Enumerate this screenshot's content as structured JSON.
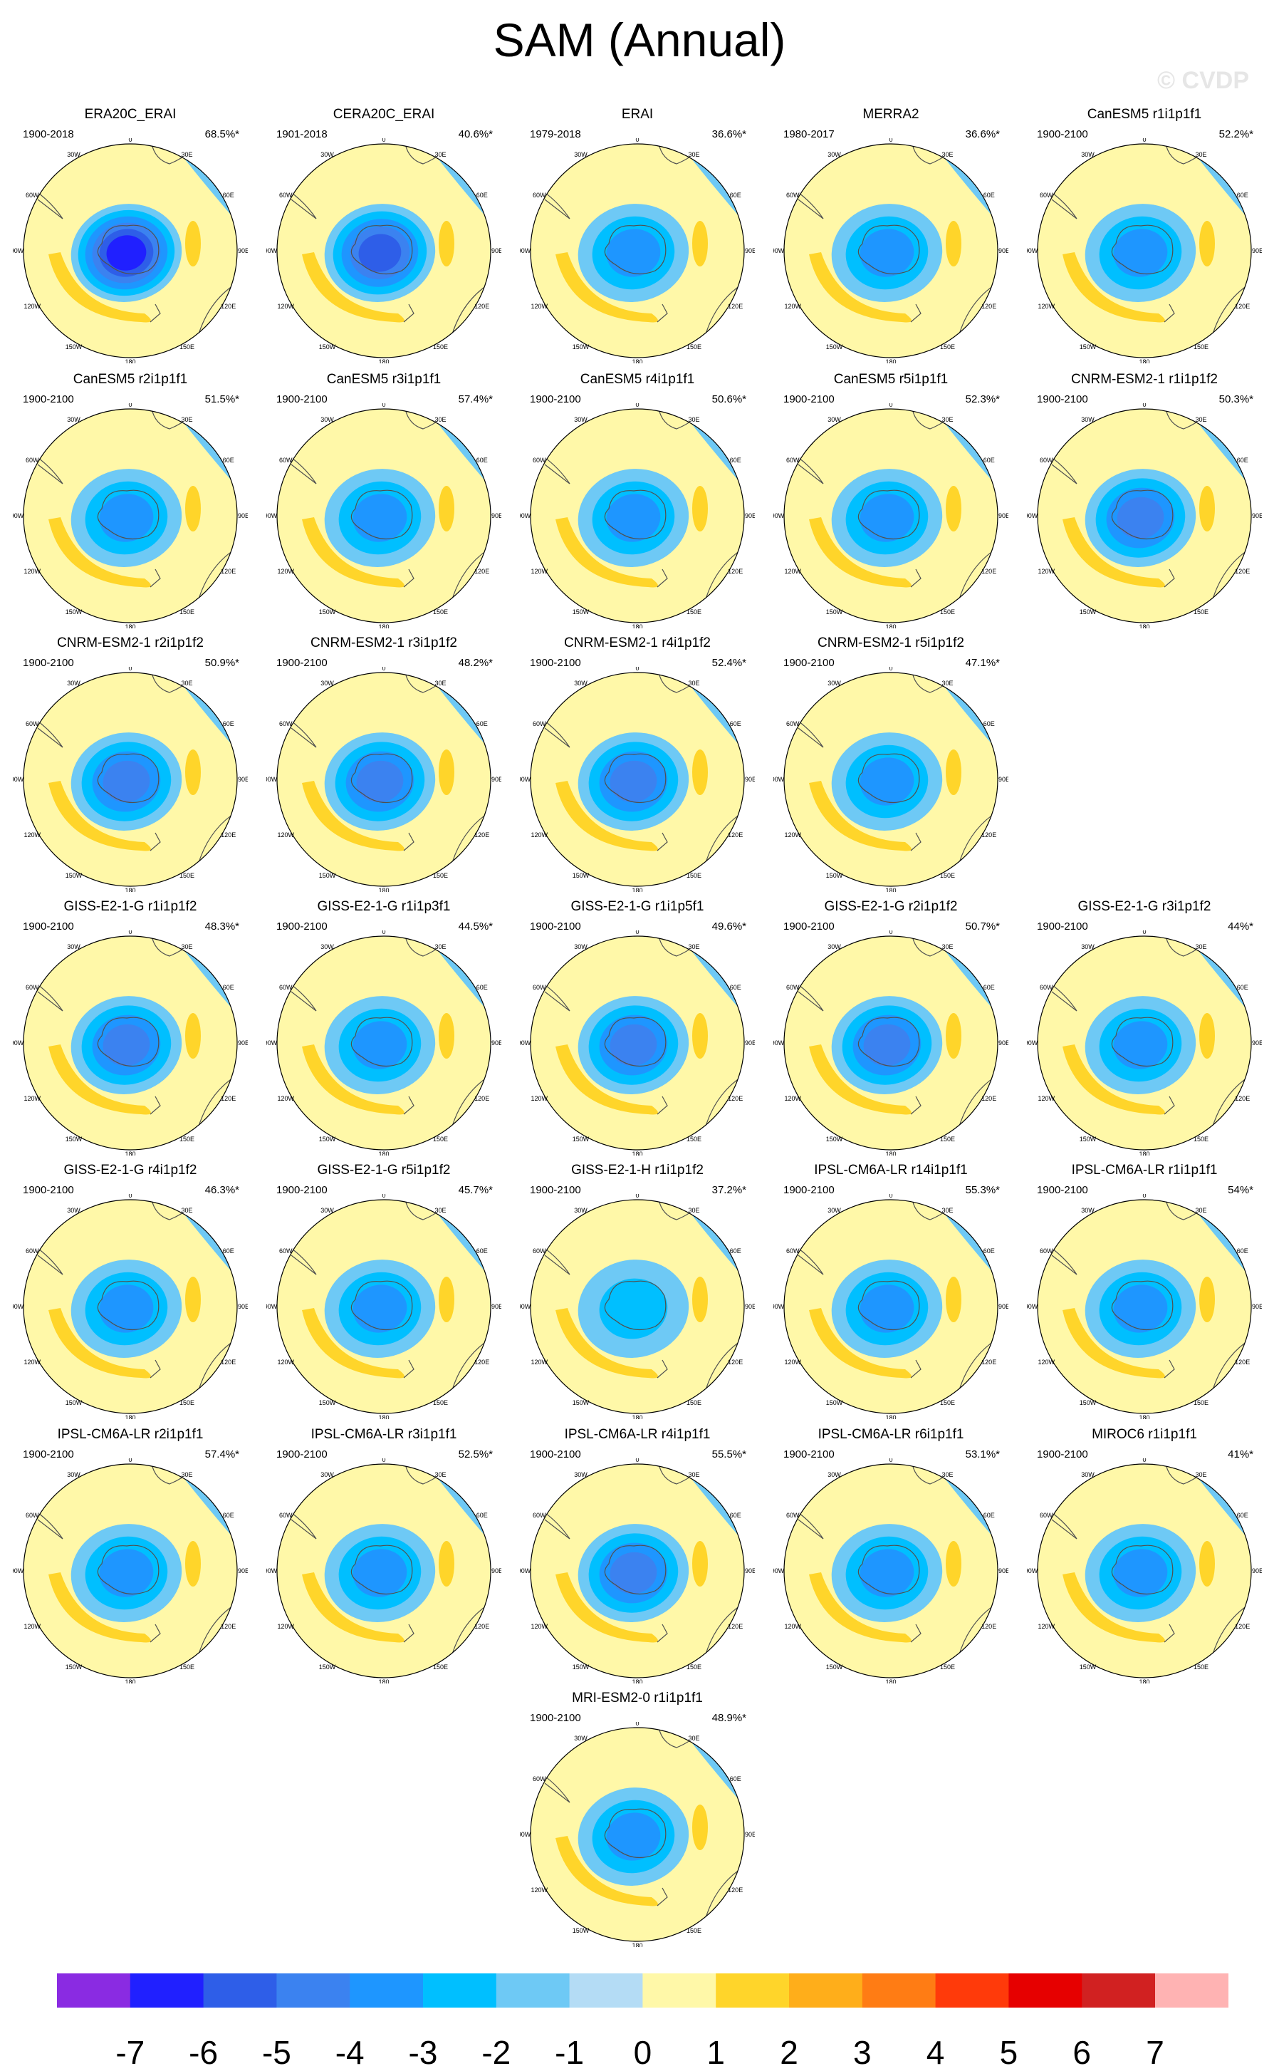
{
  "title": "SAM (Annual)",
  "watermark": "© CVDP",
  "lon_labels": {
    "n": "0",
    "ne": "30E",
    "e1": "60E",
    "e2": "90E",
    "e3": "120E",
    "se": "150E",
    "s": "180",
    "sw": "150W",
    "w3": "120W",
    "w2": "90W",
    "w1": "60W",
    "nw": "30W"
  },
  "colors": {
    "levels": [
      "#8a2be2",
      "#2020ff",
      "#2e5ee8",
      "#3b82f0",
      "#1e96ff",
      "#00bfff",
      "#6ec9f5",
      "#b4dcf5",
      "#fff8a8",
      "#ffd52a",
      "#ffae1a",
      "#ff7c14",
      "#ff3a0a",
      "#e60000",
      "#d12121",
      "#ffb3b3"
    ],
    "coast": "#505050"
  },
  "colorbar": {
    "labels": [
      "-7",
      "-6",
      "-5",
      "-4",
      "-3",
      "-2",
      "-1",
      "0",
      "1",
      "2",
      "3",
      "4",
      "5",
      "6",
      "7"
    ]
  },
  "panels": [
    {
      "title": "ERA20C_ERAI",
      "period": "1900-2018",
      "pct": "68.5%*",
      "min": -6
    },
    {
      "title": "CERA20C_ERAI",
      "period": "1901-2018",
      "pct": "40.6%*",
      "min": -5
    },
    {
      "title": "ERAI",
      "period": "1979-2018",
      "pct": "36.6%*",
      "min": -3
    },
    {
      "title": "MERRA2",
      "period": "1980-2017",
      "pct": "36.6%*",
      "min": -3
    },
    {
      "title": "CanESM5 r1i1p1f1",
      "period": "1900-2100",
      "pct": "52.2%*",
      "min": -3
    },
    {
      "title": "CanESM5 r2i1p1f1",
      "period": "1900-2100",
      "pct": "51.5%*",
      "min": -3
    },
    {
      "title": "CanESM5 r3i1p1f1",
      "period": "1900-2100",
      "pct": "57.4%*",
      "min": -3
    },
    {
      "title": "CanESM5 r4i1p1f1",
      "period": "1900-2100",
      "pct": "50.6%*",
      "min": -3
    },
    {
      "title": "CanESM5 r5i1p1f1",
      "period": "1900-2100",
      "pct": "52.3%*",
      "min": -3
    },
    {
      "title": "CNRM-ESM2-1 r1i1p1f2",
      "period": "1900-2100",
      "pct": "50.3%*",
      "min": -4
    },
    {
      "title": "CNRM-ESM2-1 r2i1p1f2",
      "period": "1900-2100",
      "pct": "50.9%*",
      "min": -4
    },
    {
      "title": "CNRM-ESM2-1 r3i1p1f2",
      "period": "1900-2100",
      "pct": "48.2%*",
      "min": -4
    },
    {
      "title": "CNRM-ESM2-1 r4i1p1f2",
      "period": "1900-2100",
      "pct": "52.4%*",
      "min": -4
    },
    {
      "title": "CNRM-ESM2-1 r5i1p1f2",
      "period": "1900-2100",
      "pct": "47.1%*",
      "min": -3
    },
    {
      "title": "GISS-E2-1-G r1i1p1f2",
      "period": "1900-2100",
      "pct": "48.3%*",
      "min": -4
    },
    {
      "title": "GISS-E2-1-G r1i1p3f1",
      "period": "1900-2100",
      "pct": "44.5%*",
      "min": -3
    },
    {
      "title": "GISS-E2-1-G r1i1p5f1",
      "period": "1900-2100",
      "pct": "49.6%*",
      "min": -4
    },
    {
      "title": "GISS-E2-1-G r2i1p1f2",
      "period": "1900-2100",
      "pct": "50.7%*",
      "min": -4
    },
    {
      "title": "GISS-E2-1-G r3i1p1f2",
      "period": "1900-2100",
      "pct": "44%*",
      "min": -3
    },
    {
      "title": "GISS-E2-1-G r4i1p1f2",
      "period": "1900-2100",
      "pct": "46.3%*",
      "min": -3
    },
    {
      "title": "GISS-E2-1-G r5i1p1f2",
      "period": "1900-2100",
      "pct": "45.7%*",
      "min": -3
    },
    {
      "title": "GISS-E2-1-H r1i1p1f2",
      "period": "1900-2100",
      "pct": "37.2%*",
      "min": -2
    },
    {
      "title": "IPSL-CM6A-LR r14i1p1f1",
      "period": "1900-2100",
      "pct": "55.3%*",
      "min": -3
    },
    {
      "title": "IPSL-CM6A-LR r1i1p1f1",
      "period": "1900-2100",
      "pct": "54%*",
      "min": -3
    },
    {
      "title": "IPSL-CM6A-LR r2i1p1f1",
      "period": "1900-2100",
      "pct": "57.4%*",
      "min": -3
    },
    {
      "title": "IPSL-CM6A-LR r3i1p1f1",
      "period": "1900-2100",
      "pct": "52.5%*",
      "min": -3
    },
    {
      "title": "IPSL-CM6A-LR r4i1p1f1",
      "period": "1900-2100",
      "pct": "55.5%*",
      "min": -4
    },
    {
      "title": "IPSL-CM6A-LR r6i1p1f1",
      "period": "1900-2100",
      "pct": "53.1%*",
      "min": -3
    },
    {
      "title": "MIROC6 r1i1p1f1",
      "period": "1900-2100",
      "pct": "41%*",
      "min": -3
    },
    {
      "title": "MRI-ESM2-0 r1i1p1f1",
      "period": "1900-2100",
      "pct": "48.9%*",
      "min": -3
    }
  ]
}
